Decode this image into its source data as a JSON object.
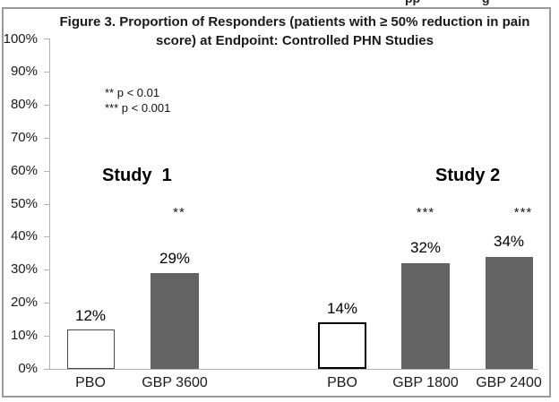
{
  "top_edge_fragments": [
    "pp",
    "g"
  ],
  "chart_data": {
    "type": "bar",
    "title": "Figure 3. Proportion of Responders (patients with ≥ 50% reduction in pain score) at Endpoint: Controlled PHN Studies",
    "legend_lines": [
      "** p < 0.01",
      "*** p < 0.001"
    ],
    "groups": [
      {
        "label": "Study  1",
        "bars": [
          {
            "category": "PBO",
            "value": 12,
            "value_label": "12%",
            "significance": "",
            "fill": "#ffffff"
          },
          {
            "category": "GBP 3600",
            "value": 29,
            "value_label": "29%",
            "significance": "**",
            "fill": "#636363"
          }
        ]
      },
      {
        "label": "Study 2",
        "bars": [
          {
            "category": "PBO",
            "value": 14,
            "value_label": "14%",
            "significance": "",
            "fill": "#ffffff"
          },
          {
            "category": "GBP 1800",
            "value": 32,
            "value_label": "32%",
            "significance": "***",
            "fill": "#636363"
          },
          {
            "category": "GBP 2400",
            "value": 34,
            "value_label": "34%",
            "significance": "***",
            "fill": "#636363"
          }
        ]
      }
    ],
    "categories": [
      "PBO",
      "GBP 3600",
      "PBO",
      "GBP 1800",
      "GBP 2400"
    ],
    "values": [
      12,
      29,
      14,
      32,
      34
    ],
    "ylim": [
      0,
      100
    ],
    "ytick_labels": [
      "0%",
      "10%",
      "20%",
      "30%",
      "40%",
      "50%",
      "60%",
      "70%",
      "80%",
      "90%",
      "100%"
    ],
    "grid": false,
    "legend_position": "upper-left-inside",
    "colors": {
      "pbo_fill": "#ffffff",
      "gbp_fill": "#636363",
      "axis": "#b3b3b3",
      "frame_border": "#9a9a9a",
      "text": "#111111"
    }
  }
}
